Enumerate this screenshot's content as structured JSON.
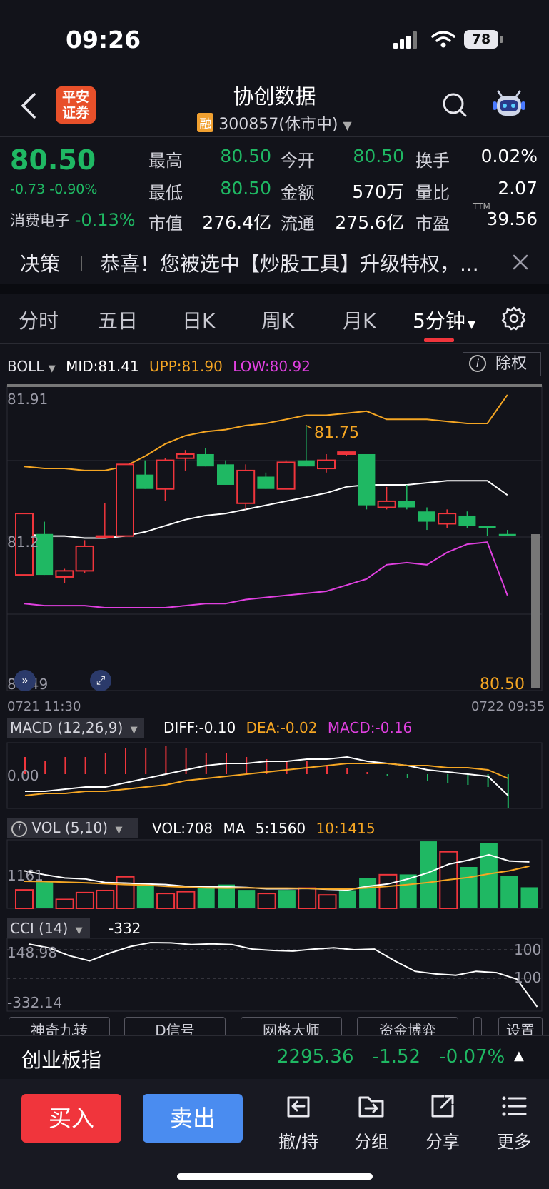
{
  "status_bar": {
    "time": "09:26",
    "battery": "78"
  },
  "header": {
    "back_icon": "chevron-left-icon",
    "broker_logo_line1": "平安",
    "broker_logo_line2": "证券",
    "title": "协创数据",
    "margin_badge": "融",
    "code_status": "300857(休市中)",
    "search_icon": "search-icon",
    "robot_icon": "robot-icon"
  },
  "quote": {
    "price": "80.50",
    "change": "-0.73",
    "change_pct": "-0.90%",
    "sector_name": "消费电子",
    "sector_change": "-0.13%",
    "cells": [
      {
        "label": "最高",
        "value": "80.50",
        "color": "#1fb863"
      },
      {
        "label": "今开",
        "value": "80.50",
        "color": "#1fb863"
      },
      {
        "label": "换手",
        "value": "0.02%",
        "color": "#ffffff"
      },
      {
        "label": "最低",
        "value": "80.50",
        "color": "#1fb863"
      },
      {
        "label": "金额",
        "value": "570万",
        "color": "#ffffff"
      },
      {
        "label": "量比",
        "value": "2.07",
        "color": "#ffffff"
      },
      {
        "label": "市值",
        "value": "276.4亿",
        "color": "#ffffff"
      },
      {
        "label": "流通",
        "value": "275.6亿",
        "color": "#ffffff"
      },
      {
        "label": "市盈",
        "value": "39.56",
        "color": "#ffffff"
      }
    ],
    "pe_suffix": "TTM"
  },
  "banner": {
    "tag": "决策",
    "message": "恭喜！您被选中【炒股工具】升级特权，...",
    "close_icon": "close-icon"
  },
  "tabs": {
    "items": [
      "分时",
      "五日",
      "日K",
      "周K",
      "月K",
      "5分钟"
    ],
    "active": "5分钟",
    "settings_icon": "gear-icon"
  },
  "boll": {
    "name": "BOLL",
    "mid": "MID:81.41",
    "upp": "UPP:81.90",
    "low": "LOW:80.92",
    "exrights_label": "除权",
    "y_top": "81.91",
    "y_mid": "81.2",
    "y_bottom": "80.49",
    "max_label": "81.75",
    "last_label": "80.50",
    "date_start": "0721 11:30",
    "date_end": "0722 09:35"
  },
  "macd": {
    "name": "MACD (12,26,9)",
    "diff": "DIFF:-0.10",
    "dea": "DEA:-0.02",
    "macd": "MACD:-0.16",
    "y_label": "0.00"
  },
  "vol": {
    "name": "VOL (5,10)",
    "vol": "VOL:708",
    "ma": "MA",
    "ma5": "5:1560",
    "ma10": "10:1415",
    "y_label": "1161"
  },
  "cci": {
    "name": "CCI (14)",
    "value": "-332",
    "y_top": "148.98",
    "y_bottom": "-332.14",
    "ref_top": "100",
    "ref_bottom": "100"
  },
  "tools": [
    "神奇九转",
    "D信号",
    "网格大师",
    "资金博弈",
    "设置"
  ],
  "index_bar": {
    "name": "创业板指",
    "value": "2295.36",
    "change": "-1.52",
    "change_pct": "-0.07%"
  },
  "actions": {
    "buy": "买入",
    "sell": "卖出",
    "items": [
      {
        "label": "撤/持",
        "icon": "cancel-order-icon"
      },
      {
        "label": "分组",
        "icon": "folder-icon"
      },
      {
        "label": "分享",
        "icon": "share-icon"
      },
      {
        "label": "更多",
        "icon": "menu-icon"
      }
    ]
  },
  "chart_data": [
    {
      "type": "candlestick",
      "title": "BOLL",
      "ylim": [
        80.49,
        81.91
      ],
      "candles": [
        {
          "o": 81.02,
          "c": 81.32,
          "h": 81.32,
          "l": 81.02
        },
        {
          "o": 81.22,
          "c": 81.02,
          "h": 81.28,
          "l": 81.02
        },
        {
          "o": 81.01,
          "c": 81.04,
          "h": 81.05,
          "l": 80.98
        },
        {
          "o": 81.04,
          "c": 81.16,
          "h": 81.19,
          "l": 81.03
        },
        {
          "o": 81.21,
          "c": 81.21,
          "h": 81.37,
          "l": 81.21
        },
        {
          "o": 81.21,
          "c": 81.56,
          "h": 81.56,
          "l": 81.21
        },
        {
          "o": 81.51,
          "c": 81.44,
          "h": 81.58,
          "l": 81.44
        },
        {
          "o": 81.44,
          "c": 81.58,
          "h": 81.59,
          "l": 81.38
        },
        {
          "o": 81.59,
          "c": 81.61,
          "h": 81.63,
          "l": 81.53
        },
        {
          "o": 81.61,
          "c": 81.55,
          "h": 81.64,
          "l": 81.55
        },
        {
          "o": 81.56,
          "c": 81.46,
          "h": 81.58,
          "l": 81.46
        },
        {
          "o": 81.37,
          "c": 81.53,
          "h": 81.56,
          "l": 81.34
        },
        {
          "o": 81.5,
          "c": 81.44,
          "h": 81.52,
          "l": 81.44
        },
        {
          "o": 81.44,
          "c": 81.57,
          "h": 81.58,
          "l": 81.44
        },
        {
          "o": 81.58,
          "c": 81.55,
          "h": 81.75,
          "l": 81.55
        },
        {
          "o": 81.54,
          "c": 81.58,
          "h": 81.61,
          "l": 81.52
        },
        {
          "o": 81.61,
          "c": 81.62,
          "h": 81.62,
          "l": 81.6
        },
        {
          "o": 81.61,
          "c": 81.36,
          "h": 81.61,
          "l": 81.34
        },
        {
          "o": 81.35,
          "c": 81.38,
          "h": 81.45,
          "l": 81.34
        },
        {
          "o": 81.38,
          "c": 81.35,
          "h": 81.46,
          "l": 81.34
        },
        {
          "o": 81.33,
          "c": 81.28,
          "h": 81.35,
          "l": 81.24
        },
        {
          "o": 81.27,
          "c": 81.32,
          "h": 81.34,
          "l": 81.25
        },
        {
          "o": 81.31,
          "c": 81.26,
          "h": 81.33,
          "l": 81.25
        },
        {
          "o": 81.26,
          "c": 81.25,
          "h": 81.26,
          "l": 81.21
        },
        {
          "o": 81.22,
          "c": 81.21,
          "h": 81.24,
          "l": 81.21
        }
      ],
      "series": [
        {
          "name": "UPP",
          "values": [
            81.55,
            81.54,
            81.54,
            81.53,
            81.53,
            81.55,
            81.6,
            81.66,
            81.7,
            81.72,
            81.73,
            81.75,
            81.76,
            81.78,
            81.8,
            81.8,
            81.81,
            81.82,
            81.78,
            81.78,
            81.78,
            81.77,
            81.76,
            81.76,
            81.9
          ]
        },
        {
          "name": "MID",
          "values": [
            81.22,
            81.21,
            81.21,
            81.2,
            81.2,
            81.21,
            81.23,
            81.26,
            81.29,
            81.31,
            81.32,
            81.34,
            81.36,
            81.38,
            81.4,
            81.42,
            81.45,
            81.46,
            81.46,
            81.46,
            81.47,
            81.48,
            81.48,
            81.48,
            81.41
          ]
        },
        {
          "name": "LOW",
          "values": [
            80.88,
            80.87,
            80.87,
            80.87,
            80.86,
            80.86,
            80.86,
            80.86,
            80.87,
            80.88,
            80.88,
            80.9,
            80.91,
            80.92,
            80.93,
            80.94,
            80.97,
            81.0,
            81.07,
            81.08,
            81.07,
            81.13,
            81.17,
            81.18,
            80.92
          ]
        }
      ]
    },
    {
      "type": "bar",
      "title": "MACD (12,26,9)",
      "ylim": [
        -0.2,
        0.2
      ],
      "series": [
        {
          "name": "MACD",
          "values": [
            0.08,
            0.06,
            0.08,
            0.08,
            0.1,
            0.12,
            0.12,
            0.13,
            0.12,
            0.1,
            0.1,
            0.08,
            0.07,
            0.06,
            0.06,
            0.04,
            0.03,
            0.01,
            -0.01,
            -0.02,
            -0.03,
            -0.04,
            -0.05,
            -0.06,
            -0.16
          ]
        },
        {
          "name": "DIFF",
          "values": [
            -0.08,
            -0.08,
            -0.07,
            -0.06,
            -0.06,
            -0.04,
            -0.02,
            0.0,
            0.02,
            0.04,
            0.05,
            0.05,
            0.06,
            0.06,
            0.07,
            0.07,
            0.08,
            0.06,
            0.05,
            0.04,
            0.02,
            0.01,
            0.0,
            -0.01,
            -0.1
          ]
        },
        {
          "name": "DEA",
          "values": [
            -0.1,
            -0.09,
            -0.09,
            -0.08,
            -0.08,
            -0.07,
            -0.06,
            -0.05,
            -0.03,
            -0.02,
            -0.01,
            0.0,
            0.01,
            0.02,
            0.03,
            0.04,
            0.05,
            0.05,
            0.05,
            0.04,
            0.04,
            0.03,
            0.03,
            0.02,
            -0.02
          ]
        }
      ]
    },
    {
      "type": "bar",
      "title": "VOL (5,10)",
      "series": [
        {
          "name": "VOL",
          "values": [
            620,
            880,
            300,
            530,
            600,
            1060,
            780,
            500,
            560,
            720,
            800,
            620,
            500,
            620,
            680,
            450,
            610,
            1030,
            1130,
            1140,
            2250,
            1900,
            1390,
            2200,
            1080,
            708
          ]
        },
        {
          "name": "MA5",
          "values": [
            1260,
            1130,
            1020,
            990,
            870,
            850,
            820,
            800,
            740,
            730,
            720,
            700,
            660,
            660,
            670,
            640,
            620,
            740,
            820,
            990,
            1200,
            1480,
            1620,
            1800,
            1590,
            1560
          ]
        },
        {
          "name": "MA10",
          "values": [
            910,
            900,
            880,
            860,
            830,
            800,
            780,
            740,
            710,
            690,
            680,
            690,
            680,
            680,
            670,
            650,
            650,
            690,
            740,
            800,
            870,
            960,
            1040,
            1160,
            1260,
            1415
          ]
        }
      ]
    },
    {
      "type": "line",
      "title": "CCI (14)",
      "ylim": [
        -332.14,
        148.98
      ],
      "series": [
        {
          "name": "CCI",
          "values": [
            148.98,
            120,
            60,
            20,
            80,
            130,
            160,
            158,
            145,
            150,
            145,
            110,
            100,
            95,
            110,
            120,
            105,
            110,
            20,
            -60,
            -80,
            -90,
            -60,
            -70,
            -120,
            -332
          ]
        }
      ]
    }
  ]
}
